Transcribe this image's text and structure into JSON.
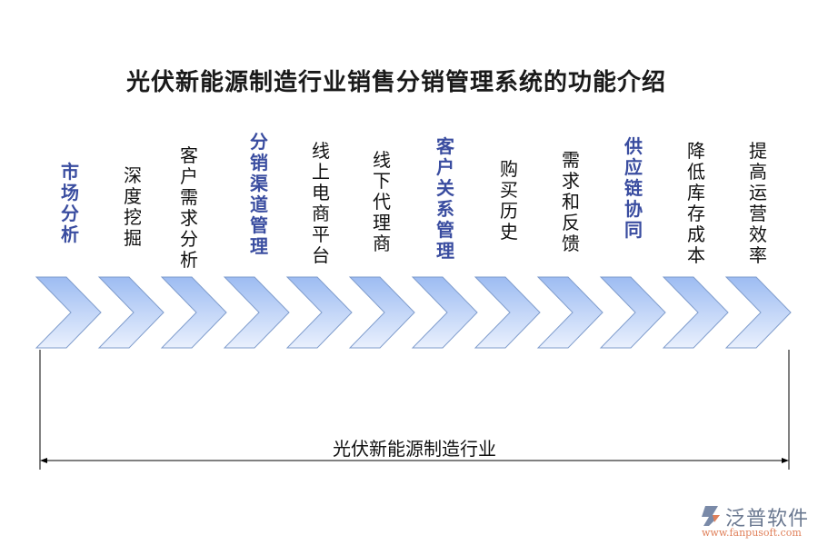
{
  "title": "光伏新能源制造行业销售分销管理系统的功能介绍",
  "colors": {
    "highlight": "#3a4da0",
    "chevron_top": "#9dbcf2",
    "chevron_bottom": "#e6eefc"
  },
  "steps": [
    {
      "label": "市场分析",
      "highlight": true
    },
    {
      "label": "深度挖掘",
      "highlight": false
    },
    {
      "label": "客户需求分析",
      "highlight": false
    },
    {
      "label": "分销渠道管理",
      "highlight": true
    },
    {
      "label": "线上电商平台",
      "highlight": false
    },
    {
      "label": "线下代理商",
      "highlight": false
    },
    {
      "label": "客户关系管理",
      "highlight": true
    },
    {
      "label": "购买历史",
      "highlight": false
    },
    {
      "label": "需求和反馈",
      "highlight": false
    },
    {
      "label": "供应链协同",
      "highlight": true
    },
    {
      "label": "降低库存成本",
      "highlight": false
    },
    {
      "label": "提高运营效率",
      "highlight": false
    }
  ],
  "span_label": "光伏新能源制造行业",
  "logo": {
    "name": "泛普软件",
    "url": "www.fanpusoft.com"
  }
}
